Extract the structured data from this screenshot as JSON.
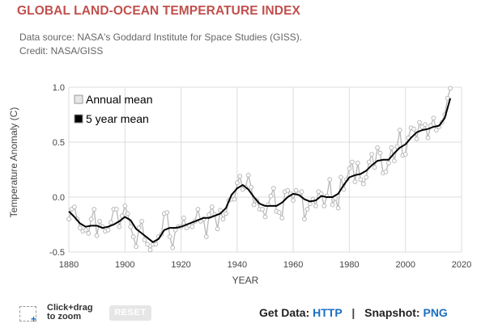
{
  "header": {
    "title": "GLOBAL LAND-OCEAN TEMPERATURE INDEX",
    "source_line": "Data source: NASA's Goddard Institute for Space Studies (GISS).",
    "credit_line": "Credit: NASA/GISS"
  },
  "controls": {
    "zoom_hint_line1": "Click+drag",
    "zoom_hint_line2": "to zoom",
    "reset_label": "RESET",
    "get_data_label": "Get Data:",
    "http_label": "HTTP",
    "separator": "|",
    "snapshot_label": "Snapshot:",
    "png_label": "PNG"
  },
  "chart_data": {
    "type": "line",
    "xlabel": "YEAR",
    "ylabel": "Temperature Anomaly (C)",
    "xlim": [
      1880,
      2020
    ],
    "ylim": [
      -0.5,
      1.0
    ],
    "xticks": [
      1880,
      1900,
      1920,
      1940,
      1960,
      1980,
      2000,
      2020
    ],
    "yticks": [
      -0.5,
      0.0,
      0.5,
      1.0
    ],
    "ytick_labels": [
      "-0.5",
      "0.0",
      "0.5",
      "1.0"
    ],
    "grid": true,
    "legend_position": "top-left",
    "colors": {
      "annual": "#b8b8b8",
      "smooth": "#000000",
      "grid": "#dddddd"
    },
    "series": [
      {
        "name": "Annual mean",
        "style": "line-markers",
        "x": [
          1880,
          1881,
          1882,
          1883,
          1884,
          1885,
          1886,
          1887,
          1888,
          1889,
          1890,
          1891,
          1892,
          1893,
          1894,
          1895,
          1896,
          1897,
          1898,
          1899,
          1900,
          1901,
          1902,
          1903,
          1904,
          1905,
          1906,
          1907,
          1908,
          1909,
          1910,
          1911,
          1912,
          1913,
          1914,
          1915,
          1916,
          1917,
          1918,
          1919,
          1920,
          1921,
          1922,
          1923,
          1924,
          1925,
          1926,
          1927,
          1928,
          1929,
          1930,
          1931,
          1932,
          1933,
          1934,
          1935,
          1936,
          1937,
          1938,
          1939,
          1940,
          1941,
          1942,
          1943,
          1944,
          1945,
          1946,
          1947,
          1948,
          1949,
          1950,
          1951,
          1952,
          1953,
          1954,
          1955,
          1956,
          1957,
          1958,
          1959,
          1960,
          1961,
          1962,
          1963,
          1964,
          1965,
          1966,
          1967,
          1968,
          1969,
          1970,
          1971,
          1972,
          1973,
          1974,
          1975,
          1976,
          1977,
          1978,
          1979,
          1980,
          1981,
          1982,
          1983,
          1984,
          1985,
          1986,
          1987,
          1988,
          1989,
          1990,
          1991,
          1992,
          1993,
          1994,
          1995,
          1996,
          1997,
          1998,
          1999,
          2000,
          2001,
          2002,
          2003,
          2004,
          2005,
          2006,
          2007,
          2008,
          2009,
          2010,
          2011,
          2012,
          2013,
          2014,
          2015,
          2016
        ],
        "values": [
          -0.2,
          -0.11,
          -0.09,
          -0.2,
          -0.28,
          -0.31,
          -0.3,
          -0.33,
          -0.2,
          -0.11,
          -0.35,
          -0.22,
          -0.27,
          -0.31,
          -0.3,
          -0.23,
          -0.11,
          -0.11,
          -0.27,
          -0.17,
          -0.08,
          -0.15,
          -0.27,
          -0.36,
          -0.45,
          -0.28,
          -0.22,
          -0.39,
          -0.43,
          -0.48,
          -0.43,
          -0.43,
          -0.36,
          -0.34,
          -0.15,
          -0.14,
          -0.36,
          -0.46,
          -0.3,
          -0.27,
          -0.27,
          -0.19,
          -0.28,
          -0.26,
          -0.27,
          -0.22,
          -0.11,
          -0.22,
          -0.2,
          -0.36,
          -0.16,
          -0.09,
          -0.16,
          -0.29,
          -0.12,
          -0.2,
          -0.15,
          -0.03,
          -0.02,
          -0.02,
          0.13,
          0.19,
          0.07,
          0.09,
          0.2,
          0.09,
          -0.07,
          -0.03,
          -0.11,
          -0.11,
          -0.18,
          -0.07,
          0.01,
          0.08,
          -0.13,
          -0.14,
          -0.19,
          0.05,
          0.06,
          0.03,
          -0.03,
          0.06,
          0.03,
          0.05,
          -0.2,
          -0.11,
          -0.06,
          -0.02,
          -0.08,
          0.05,
          0.03,
          -0.08,
          0.01,
          0.16,
          -0.07,
          -0.01,
          -0.1,
          0.18,
          0.07,
          0.16,
          0.26,
          0.32,
          0.14,
          0.31,
          0.16,
          0.12,
          0.18,
          0.32,
          0.39,
          0.27,
          0.45,
          0.4,
          0.22,
          0.23,
          0.31,
          0.45,
          0.33,
          0.46,
          0.61,
          0.38,
          0.39,
          0.54,
          0.63,
          0.62,
          0.53,
          0.68,
          0.64,
          0.66,
          0.54,
          0.65,
          0.72,
          0.61,
          0.64,
          0.68,
          0.75,
          0.9,
          0.99
        ]
      },
      {
        "name": "5 year mean",
        "style": "line",
        "x": [
          1880,
          1882,
          1884,
          1886,
          1888,
          1890,
          1892,
          1894,
          1896,
          1898,
          1900,
          1902,
          1904,
          1906,
          1908,
          1910,
          1912,
          1914,
          1916,
          1918,
          1920,
          1922,
          1924,
          1926,
          1928,
          1930,
          1932,
          1934,
          1936,
          1938,
          1940,
          1942,
          1944,
          1946,
          1948,
          1950,
          1952,
          1954,
          1956,
          1958,
          1960,
          1962,
          1964,
          1966,
          1968,
          1970,
          1972,
          1974,
          1976,
          1978,
          1980,
          1982,
          1984,
          1986,
          1988,
          1990,
          1992,
          1994,
          1996,
          1998,
          2000,
          2002,
          2004,
          2006,
          2008,
          2010,
          2012,
          2014,
          2016
        ],
        "values": [
          -0.13,
          -0.18,
          -0.24,
          -0.27,
          -0.26,
          -0.26,
          -0.28,
          -0.27,
          -0.25,
          -0.22,
          -0.18,
          -0.21,
          -0.29,
          -0.33,
          -0.37,
          -0.41,
          -0.38,
          -0.3,
          -0.28,
          -0.28,
          -0.27,
          -0.25,
          -0.23,
          -0.21,
          -0.19,
          -0.19,
          -0.17,
          -0.15,
          -0.1,
          0.02,
          0.08,
          0.11,
          0.07,
          0.0,
          -0.06,
          -0.08,
          -0.08,
          -0.08,
          -0.05,
          0.0,
          0.03,
          0.02,
          -0.02,
          -0.04,
          -0.03,
          0.01,
          0.0,
          0.0,
          0.03,
          0.11,
          0.18,
          0.2,
          0.21,
          0.24,
          0.29,
          0.33,
          0.34,
          0.34,
          0.4,
          0.45,
          0.48,
          0.54,
          0.59,
          0.61,
          0.62,
          0.64,
          0.65,
          0.72,
          0.9
        ]
      }
    ]
  }
}
